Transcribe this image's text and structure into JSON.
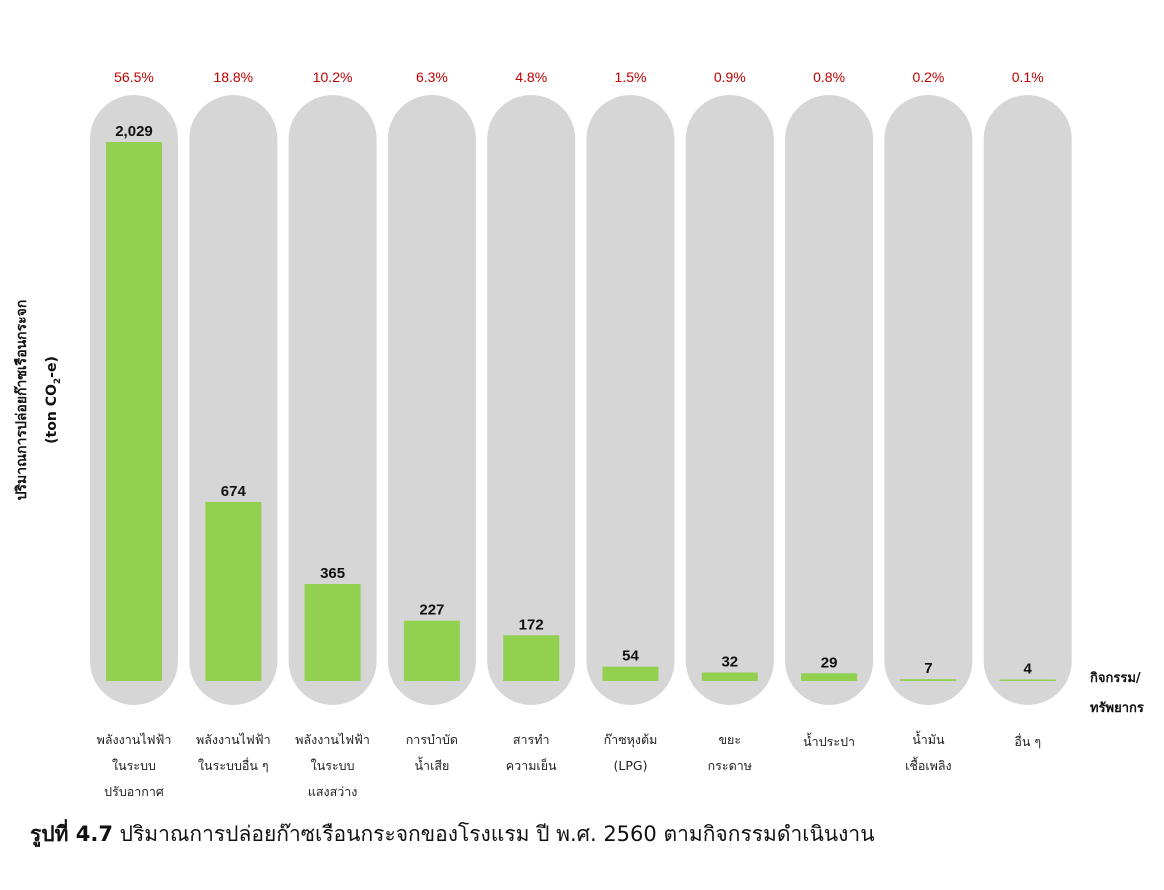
{
  "chart_data": {
    "type": "bar",
    "categories": [
      [
        "พลังงานไฟฟ้า",
        "ในระบบ",
        "ปรับอากาศ"
      ],
      [
        "พลังงานไฟฟ้า",
        "ในระบบอื่น ๆ"
      ],
      [
        "พลังงานไฟฟ้า",
        "ในระบบ",
        "แสงสว่าง"
      ],
      [
        "การบำบัด",
        "น้ำเสีย"
      ],
      [
        "สารทำ",
        "ความเย็น"
      ],
      [
        "ก๊าซหุงต้ม",
        "(LPG)"
      ],
      [
        "ขยะ",
        "กระดาษ"
      ],
      [
        "น้ำประปา"
      ],
      [
        "น้ำมัน",
        "เชื้อเพลิง"
      ],
      [
        "อื่น ๆ"
      ]
    ],
    "values": [
      2029,
      674,
      365,
      227,
      172,
      54,
      32,
      29,
      7,
      4
    ],
    "value_labels": [
      "2,029",
      "674",
      "365",
      "227",
      "172",
      "54",
      "32",
      "29",
      "7",
      "4"
    ],
    "percent_labels": [
      "56.5%",
      "18.8%",
      "10.2%",
      "6.3%",
      "4.8%",
      "1.5%",
      "0.9%",
      "0.8%",
      "0.2%",
      "0.1%"
    ],
    "ylabel_line1": "ปริมาณการปล่อยก๊าซเรือนกระจก",
    "ylabel_line2": "(ton CO",
    "ylabel_sub": "2",
    "ylabel_tail": "-e)",
    "xlabel_line1": "กิจกรรม/",
    "xlabel_line2": "ทรัพยากร",
    "ylim": [
      0,
      2029
    ],
    "colors": {
      "bar": "#92d050",
      "track": "#d6d6d6",
      "percent": "#c00000",
      "value": "#111111"
    }
  },
  "caption": {
    "lead": "รูปที่ 4.7",
    "text": " ปริมาณการปล่อยก๊าซเรือนกระจกของโรงแรม ปี พ.ศ. 2560 ตามกิจกรรมดำเนินงาน"
  }
}
